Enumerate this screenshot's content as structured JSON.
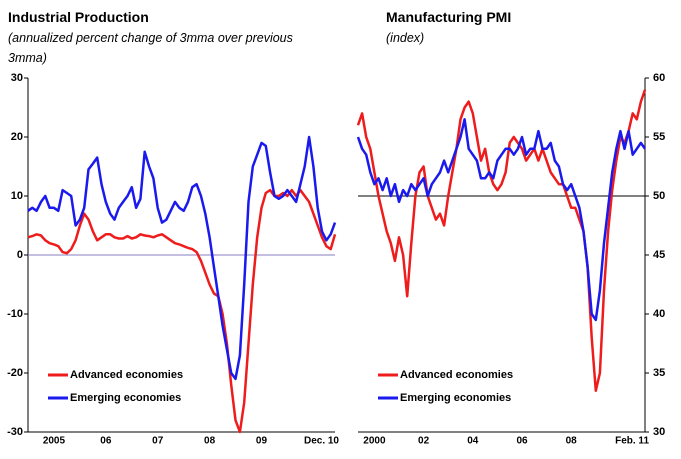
{
  "chart_data": [
    {
      "type": "line",
      "title": "Industrial Production",
      "subtitle": "(annualized percent change of 3mma over previous 3mma)",
      "categories": [
        null,
        null,
        null,
        null,
        null,
        null,
        "2005",
        null,
        null,
        null,
        null,
        null,
        null,
        null,
        null,
        null,
        null,
        null,
        "06",
        null,
        null,
        null,
        null,
        null,
        null,
        null,
        null,
        null,
        null,
        null,
        "07",
        null,
        null,
        null,
        null,
        null,
        null,
        null,
        null,
        null,
        null,
        null,
        "08",
        null,
        null,
        null,
        null,
        null,
        null,
        null,
        null,
        null,
        null,
        null,
        "09",
        null,
        null,
        null,
        null,
        null,
        null,
        null,
        null,
        null,
        null,
        null,
        null,
        null,
        null,
        null,
        null,
        "Dec. 10"
      ],
      "series": [
        {
          "name": "Advanced economies",
          "color": "#ee1c1c",
          "values": [
            3,
            3.2,
            3.5,
            3.3,
            2.5,
            2,
            1.8,
            1.5,
            0.5,
            0.3,
            1,
            2.5,
            5,
            7,
            6,
            4,
            2.5,
            3,
            3.5,
            3.5,
            3,
            2.8,
            2.8,
            3.2,
            2.8,
            3,
            3.5,
            3.3,
            3.2,
            3,
            3.3,
            3.5,
            3,
            2.5,
            2,
            1.8,
            1.5,
            1.2,
            1,
            0.5,
            -1,
            -3,
            -5,
            -6.5,
            -7,
            -10,
            -15,
            -22,
            -28,
            -30,
            -25,
            -15,
            -5,
            3,
            8,
            10.5,
            11,
            10,
            10,
            10.5,
            10,
            11,
            10,
            11,
            10,
            9,
            7,
            5,
            3,
            1.5,
            1,
            3.5
          ]
        },
        {
          "name": "Emerging economies",
          "color": "#1a1aee",
          "values": [
            7.5,
            8,
            7.5,
            9,
            10,
            8,
            8,
            7.5,
            11,
            10.5,
            10,
            5,
            6,
            8,
            14.5,
            15.5,
            16.5,
            12,
            9,
            7,
            6,
            8,
            9,
            10,
            11.5,
            8,
            9.5,
            17.5,
            15,
            13,
            8,
            5.5,
            6,
            7.5,
            9,
            8,
            7.5,
            9,
            11.5,
            12,
            10,
            7,
            3,
            -2,
            -7,
            -12,
            -16,
            -20,
            -21,
            -17,
            -5,
            9,
            15,
            17,
            19,
            18.5,
            14,
            10,
            9.5,
            10,
            11,
            10,
            9,
            12,
            15,
            20,
            15,
            8,
            4,
            2.5,
            3.5,
            5.5
          ]
        }
      ],
      "ylim": [
        -30,
        30
      ],
      "yticks": [
        -30,
        -20,
        -10,
        0,
        10,
        20,
        30
      ],
      "hline": 0,
      "hline_color": "#8a7fc0",
      "legend": "lower left"
    },
    {
      "type": "line",
      "title": "Manufacturing PMI",
      "subtitle": "(index)",
      "categories": [
        null,
        null,
        null,
        null,
        "2000",
        null,
        null,
        null,
        null,
        null,
        null,
        null,
        null,
        null,
        null,
        null,
        "02",
        null,
        null,
        null,
        null,
        null,
        null,
        null,
        null,
        null,
        null,
        null,
        "04",
        null,
        null,
        null,
        null,
        null,
        null,
        null,
        null,
        null,
        null,
        null,
        "06",
        null,
        null,
        null,
        null,
        null,
        null,
        null,
        null,
        null,
        null,
        null,
        "08",
        null,
        null,
        null,
        null,
        null,
        null,
        null,
        null,
        null,
        null,
        null,
        null,
        null,
        null,
        null,
        null,
        null,
        "Feb. 11"
      ],
      "series": [
        {
          "name": "Advanced economies",
          "color": "#ee1c1c",
          "axis": "y2",
          "values": [
            56,
            57,
            55,
            54,
            52,
            50,
            48.5,
            47,
            46,
            44.5,
            46.5,
            45,
            41.5,
            46,
            50,
            52,
            52.5,
            50,
            49,
            48,
            48.5,
            47.5,
            50,
            52,
            54,
            56.5,
            57.5,
            58,
            57,
            55,
            53,
            54,
            52,
            51,
            50.5,
            51,
            52,
            54.5,
            55,
            54.5,
            54,
            53,
            53.5,
            54,
            53,
            54,
            53,
            52,
            51.5,
            51,
            51,
            50,
            49,
            49,
            48,
            47,
            44,
            38,
            33.5,
            35,
            42,
            47,
            50.5,
            53,
            55,
            54.5,
            55.5,
            57,
            56.5,
            58,
            59
          ]
        },
        {
          "name": "Emerging economies",
          "color": "#1a1aee",
          "axis": "y2",
          "values": [
            55,
            54,
            53.5,
            52,
            51,
            51.5,
            50.5,
            51.5,
            50,
            51,
            49.5,
            50.5,
            50,
            51,
            50.5,
            51,
            51.5,
            50,
            51,
            51.5,
            52,
            53,
            52,
            53,
            54,
            55,
            56.5,
            54,
            53.5,
            53,
            51.5,
            51.5,
            52,
            51.5,
            53,
            53.5,
            54,
            54,
            53.5,
            54,
            55,
            53.5,
            54,
            54,
            55.5,
            54,
            54,
            54.5,
            53,
            52.5,
            51,
            50.5,
            51,
            50,
            49,
            47,
            44,
            40,
            39.5,
            42,
            46,
            49,
            52,
            54,
            55.5,
            54,
            55.5,
            53.5,
            54,
            54.5,
            54
          ]
        }
      ],
      "y2lim": [
        30,
        60
      ],
      "y2ticks": [
        30,
        35,
        40,
        45,
        50,
        55,
        60
      ],
      "hline": 50,
      "hline_color": "#000000",
      "legend": "lower left"
    }
  ]
}
